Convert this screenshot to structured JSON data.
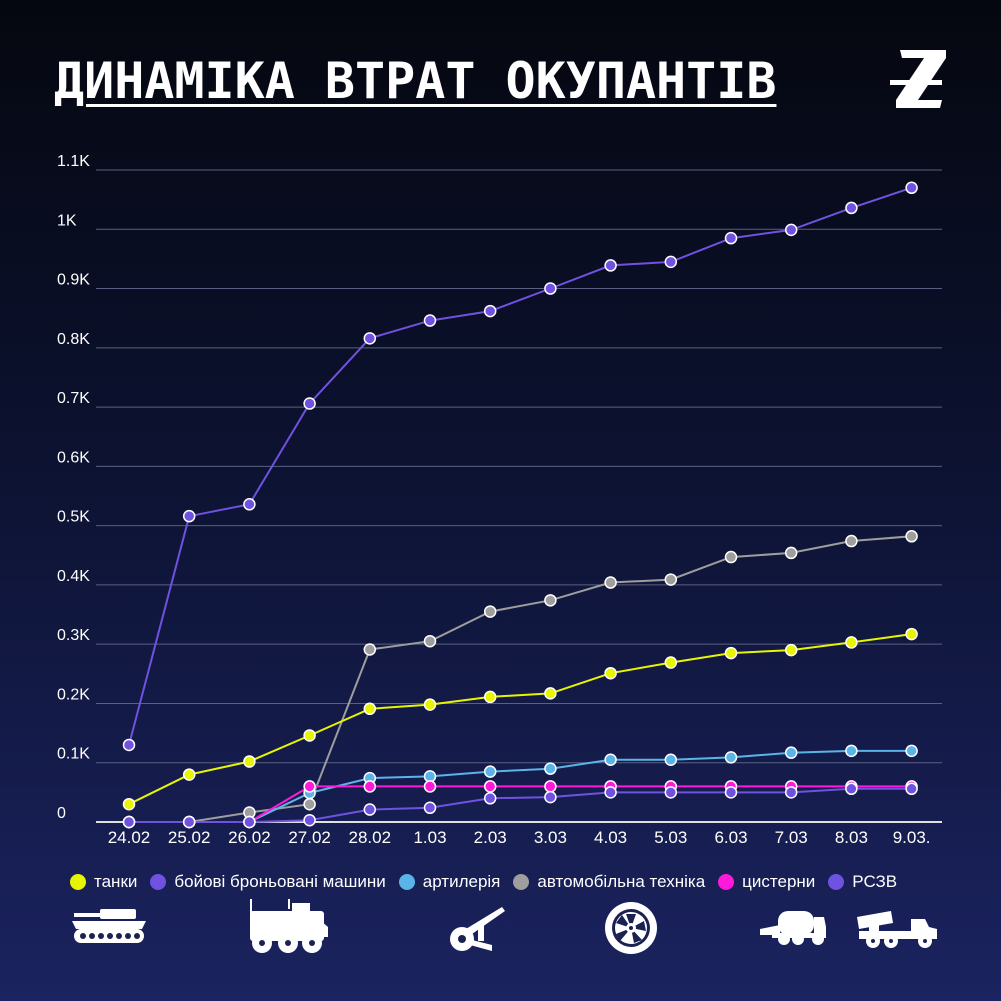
{
  "title": "ДИНАМІКА ВТРАТ ОКУПАНТІВ",
  "logo": "Z-logo-icon",
  "icons": [
    "tank-icon",
    "armored-vehicle-icon",
    "artillery-icon",
    "wheel-icon",
    "tanker-truck-icon",
    "rocket-launcher-icon"
  ],
  "chart_data": {
    "type": "line",
    "categories": [
      "24.02",
      "25.02",
      "26.02",
      "27.02",
      "28.02",
      "1.03",
      "2.03",
      "3.03",
      "4.03",
      "5.03",
      "6.03",
      "7.03",
      "8.03",
      "9.03."
    ],
    "y_ticks": [
      "0",
      "0.1K",
      "0.2K",
      "0.3K",
      "0.4K",
      "0.5K",
      "0.6K",
      "0.7K",
      "0.8K",
      "0.9K",
      "1K",
      "1.1K"
    ],
    "ylim": [
      0,
      1100
    ],
    "grid": true,
    "legend_position": "bottom",
    "series": [
      {
        "name": "танки",
        "color": "#e8f500",
        "values": [
          30,
          80,
          102,
          146,
          191,
          198,
          211,
          217,
          251,
          269,
          285,
          290,
          303,
          317
        ]
      },
      {
        "name": "бойові броньовані машини",
        "color": "#6f52e0",
        "values": [
          130,
          516,
          536,
          706,
          816,
          846,
          862,
          900,
          939,
          945,
          985,
          999,
          1036,
          1070
        ]
      },
      {
        "name": "артилерія",
        "color": "#5ab4e8",
        "values": [
          0,
          0,
          0,
          49,
          74,
          77,
          85,
          90,
          105,
          105,
          109,
          117,
          120,
          120
        ]
      },
      {
        "name": "автомобільна техніка",
        "color": "#9e9e9e",
        "values": [
          0,
          0,
          16,
          30,
          291,
          305,
          355,
          374,
          404,
          409,
          447,
          454,
          474,
          482
        ]
      },
      {
        "name": "цистерни",
        "color": "#ff1ad9",
        "values": [
          0,
          0,
          0,
          60,
          60,
          60,
          60,
          60,
          60,
          60,
          60,
          60,
          60,
          60
        ]
      },
      {
        "name": "РСЗВ",
        "color": "#6f52e0",
        "values": [
          0,
          0,
          0,
          3,
          21,
          24,
          40,
          42,
          50,
          50,
          50,
          50,
          56,
          56
        ]
      }
    ]
  }
}
